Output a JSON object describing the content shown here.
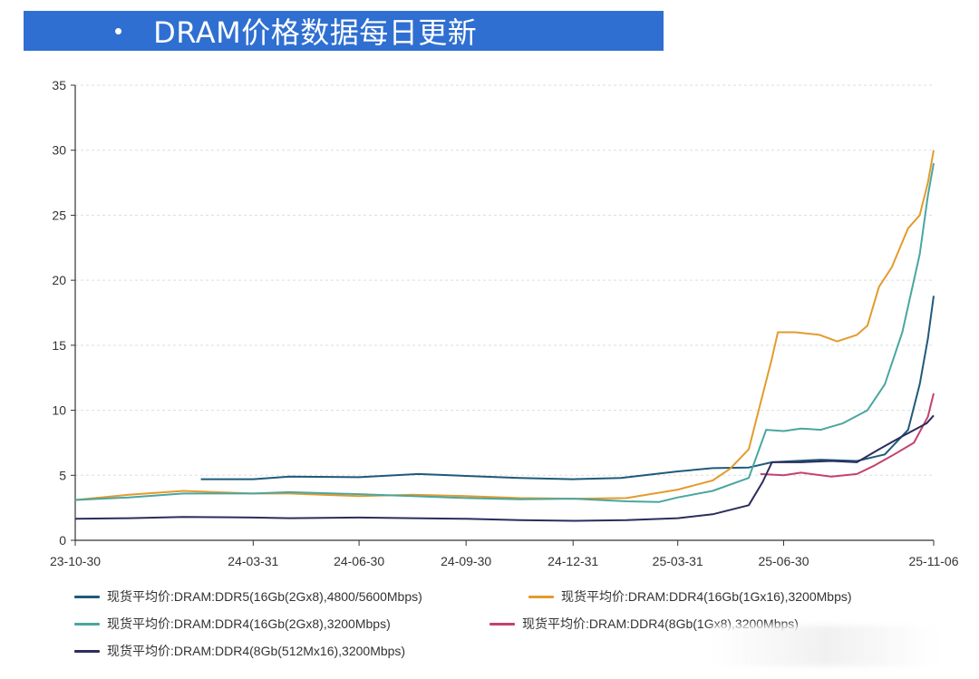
{
  "header": {
    "bullet": "•",
    "title": "DRAM价格数据每日更新"
  },
  "chart_data": {
    "type": "line",
    "title": "",
    "xlabel": "",
    "ylabel": "",
    "ylim": [
      0,
      35
    ],
    "yticks": [
      0,
      5,
      10,
      15,
      20,
      25,
      30,
      35
    ],
    "grid": true,
    "legend_placement": "bottom",
    "x_tick_labels": [
      "23-10-30",
      "24-03-31",
      "24-06-30",
      "24-09-30",
      "24-12-31",
      "25-03-31",
      "25-06-30",
      "25-11-06"
    ],
    "x_tick_dates": [
      "2023-10-30",
      "2024-03-31",
      "2024-06-30",
      "2024-09-30",
      "2024-12-31",
      "2025-03-31",
      "2025-06-30",
      "2025-11-06"
    ],
    "x_range": [
      "2023-10-30",
      "2025-11-06"
    ],
    "series": [
      {
        "name": "现货平均价:DRAM:DDR5(16Gb(2Gx8),4800/5600Mbps)",
        "color": "#1f5a7a",
        "points": [
          [
            "2024-02-15",
            4.7
          ],
          [
            "2024-03-31",
            4.7
          ],
          [
            "2024-05-01",
            4.9
          ],
          [
            "2024-06-30",
            4.85
          ],
          [
            "2024-08-20",
            5.1
          ],
          [
            "2024-09-30",
            4.95
          ],
          [
            "2024-11-15",
            4.8
          ],
          [
            "2024-12-31",
            4.7
          ],
          [
            "2025-02-10",
            4.8
          ],
          [
            "2025-03-31",
            5.3
          ],
          [
            "2025-04-30",
            5.55
          ],
          [
            "2025-05-31",
            5.6
          ],
          [
            "2025-06-20",
            6.0
          ],
          [
            "2025-07-10",
            6.1
          ],
          [
            "2025-08-01",
            6.2
          ],
          [
            "2025-09-01",
            6.1
          ],
          [
            "2025-09-25",
            6.6
          ],
          [
            "2025-10-15",
            8.5
          ],
          [
            "2025-10-25",
            12.0
          ],
          [
            "2025-11-01",
            15.5
          ],
          [
            "2025-11-06",
            18.8
          ]
        ]
      },
      {
        "name": "现货平均价:DRAM:DDR4(16Gb(1Gx16),3200Mbps)",
        "color": "#e39b2e",
        "points": [
          [
            "2023-10-30",
            3.1
          ],
          [
            "2023-12-15",
            3.5
          ],
          [
            "2024-01-31",
            3.8
          ],
          [
            "2024-03-31",
            3.6
          ],
          [
            "2024-05-01",
            3.6
          ],
          [
            "2024-06-30",
            3.4
          ],
          [
            "2024-08-15",
            3.5
          ],
          [
            "2024-09-30",
            3.4
          ],
          [
            "2024-11-15",
            3.25
          ],
          [
            "2024-12-31",
            3.2
          ],
          [
            "2025-02-15",
            3.25
          ],
          [
            "2025-03-31",
            3.9
          ],
          [
            "2025-04-30",
            4.6
          ],
          [
            "2025-05-15",
            5.5
          ],
          [
            "2025-05-31",
            7.0
          ],
          [
            "2025-06-10",
            10.5
          ],
          [
            "2025-06-20",
            14.0
          ],
          [
            "2025-06-25",
            16.0
          ],
          [
            "2025-07-10",
            16.0
          ],
          [
            "2025-07-31",
            15.8
          ],
          [
            "2025-08-15",
            15.3
          ],
          [
            "2025-09-01",
            15.8
          ],
          [
            "2025-09-10",
            16.5
          ],
          [
            "2025-09-20",
            19.5
          ],
          [
            "2025-10-01",
            21.0
          ],
          [
            "2025-10-15",
            24.0
          ],
          [
            "2025-10-25",
            25.0
          ],
          [
            "2025-11-01",
            27.5
          ],
          [
            "2025-11-06",
            30.0
          ]
        ]
      },
      {
        "name": "现货平均价:DRAM:DDR4(16Gb(2Gx8),3200Mbps)",
        "color": "#4aa6a0",
        "points": [
          [
            "2023-10-30",
            3.1
          ],
          [
            "2023-12-15",
            3.3
          ],
          [
            "2024-01-31",
            3.6
          ],
          [
            "2024-03-31",
            3.6
          ],
          [
            "2024-05-01",
            3.7
          ],
          [
            "2024-06-30",
            3.55
          ],
          [
            "2024-08-15",
            3.4
          ],
          [
            "2024-09-30",
            3.25
          ],
          [
            "2024-11-15",
            3.15
          ],
          [
            "2024-12-31",
            3.2
          ],
          [
            "2025-02-15",
            3.0
          ],
          [
            "2025-03-15",
            2.95
          ],
          [
            "2025-03-31",
            3.3
          ],
          [
            "2025-04-30",
            3.8
          ],
          [
            "2025-05-31",
            4.8
          ],
          [
            "2025-06-15",
            8.5
          ],
          [
            "2025-06-30",
            8.4
          ],
          [
            "2025-07-15",
            8.6
          ],
          [
            "2025-08-01",
            8.5
          ],
          [
            "2025-08-20",
            9.0
          ],
          [
            "2025-09-10",
            10.0
          ],
          [
            "2025-09-25",
            12.0
          ],
          [
            "2025-10-10",
            16.0
          ],
          [
            "2025-10-25",
            22.0
          ],
          [
            "2025-11-01",
            26.5
          ],
          [
            "2025-11-06",
            29.0
          ]
        ]
      },
      {
        "name": "现货平均价:DRAM:DDR4(8Gb(1Gx8),3200Mbps)",
        "color": "#c4426e",
        "points": [
          [
            "2025-06-10",
            5.1
          ],
          [
            "2025-06-30",
            5.0
          ],
          [
            "2025-07-15",
            5.2
          ],
          [
            "2025-08-10",
            4.9
          ],
          [
            "2025-09-01",
            5.1
          ],
          [
            "2025-09-15",
            5.7
          ],
          [
            "2025-10-01",
            6.5
          ],
          [
            "2025-10-20",
            7.5
          ],
          [
            "2025-11-01",
            9.5
          ],
          [
            "2025-11-06",
            11.3
          ]
        ]
      },
      {
        "name": "现货平均价:DRAM:DDR4(8Gb(512Mx16),3200Mbps)",
        "color": "#2b2d5c",
        "points": [
          [
            "2023-10-30",
            1.65
          ],
          [
            "2023-12-15",
            1.7
          ],
          [
            "2024-01-31",
            1.8
          ],
          [
            "2024-03-31",
            1.75
          ],
          [
            "2024-05-01",
            1.7
          ],
          [
            "2024-06-30",
            1.75
          ],
          [
            "2024-08-15",
            1.7
          ],
          [
            "2024-09-30",
            1.65
          ],
          [
            "2024-11-15",
            1.55
          ],
          [
            "2024-12-31",
            1.5
          ],
          [
            "2025-02-15",
            1.55
          ],
          [
            "2025-03-31",
            1.7
          ],
          [
            "2025-04-30",
            2.0
          ],
          [
            "2025-05-31",
            2.7
          ],
          [
            "2025-06-12",
            4.5
          ],
          [
            "2025-06-20",
            6.0
          ],
          [
            "2025-07-15",
            6.0
          ],
          [
            "2025-08-10",
            6.1
          ],
          [
            "2025-09-01",
            6.0
          ],
          [
            "2025-09-20",
            7.0
          ],
          [
            "2025-10-10",
            8.0
          ],
          [
            "2025-10-31",
            9.0
          ],
          [
            "2025-11-06",
            9.6
          ]
        ]
      }
    ]
  }
}
